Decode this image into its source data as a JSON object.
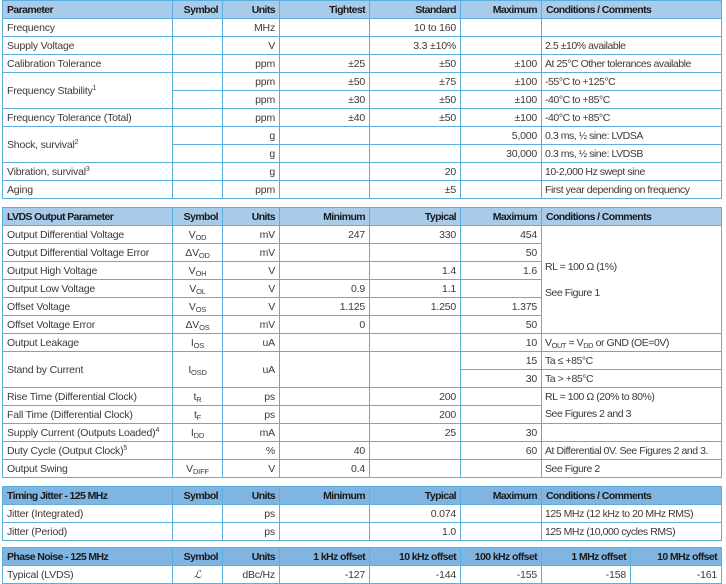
{
  "spec": {
    "headers": [
      "Parameter",
      "Symbol",
      "Units",
      "Tightest",
      "Standard",
      "Maximum",
      "Conditions / Comments"
    ],
    "rows": [
      {
        "parameter": "Frequency",
        "units": "MHz",
        "tightest": "",
        "standard": "10 to 160",
        "maximum": "",
        "conditions": ""
      },
      {
        "parameter": "Supply Voltage",
        "units": "V",
        "tightest": "",
        "standard": "3.3 ±10%",
        "maximum": "",
        "conditions": "2.5 ±10% available"
      },
      {
        "parameter": "Calibration Tolerance",
        "units": "ppm",
        "tightest": "±25",
        "standard": "±50",
        "maximum": "±100",
        "conditions": "At 25°C Other tolerances available"
      },
      {
        "parameter": "Frequency Stability",
        "sup": "1",
        "sub_rows": [
          {
            "units": "ppm",
            "tightest": "±50",
            "standard": "±75",
            "maximum": "±100",
            "conditions": "-55°C to +125°C"
          },
          {
            "units": "ppm",
            "tightest": "±30",
            "standard": "±50",
            "maximum": "±100",
            "conditions": "-40°C to +85°C"
          }
        ]
      },
      {
        "parameter": "Frequency Tolerance (Total)",
        "units": "ppm",
        "tightest": "±40",
        "standard": "±50",
        "maximum": "±100",
        "conditions": "-40°C to +85°C"
      },
      {
        "parameter": "Shock, survival",
        "sup": "2",
        "sub_rows": [
          {
            "units": "g",
            "maximum": "5,000",
            "conditions_pre": "0.3 ms, ",
            "frac": "½",
            "conditions": "sine: LVDSA"
          },
          {
            "units": "g",
            "maximum": "30,000",
            "conditions_pre": "0.3 ms, ",
            "frac": "½",
            "conditions": "sine: LVDSB"
          }
        ]
      },
      {
        "parameter": "Vibration, survival",
        "sup": "3",
        "units": "g",
        "standard": "20",
        "conditions": "10-2,000 Hz swept sine"
      },
      {
        "parameter": "Aging",
        "units": "ppm",
        "standard": "±5",
        "conditions": "First year depending on frequency"
      }
    ]
  },
  "lvds": {
    "headers": [
      "LVDS Output Parameter",
      "Symbol",
      "Units",
      "Minimum",
      "Typical",
      "Maximum",
      "Conditions / Comments"
    ],
    "rows": [
      {
        "parameter": "Output Differential Voltage",
        "symbol": "V",
        "symbol_sub": "OD",
        "units": "mV",
        "minimum": "247",
        "typical": "330",
        "maximum": "454"
      },
      {
        "parameter": "Output Differential Voltage Error",
        "symbol": "ΔV",
        "symbol_sub": "OD",
        "units": "mV",
        "maximum": "50"
      },
      {
        "parameter": "Output High Voltage",
        "symbol": "V",
        "symbol_sub": "OH",
        "units": "V",
        "typical": "1.4",
        "maximum": "1.6"
      },
      {
        "parameter": "Output Low Voltage",
        "symbol": "V",
        "symbol_sub": "OL",
        "units": "V",
        "minimum": "0.9",
        "typical": "1.1"
      },
      {
        "parameter": "Offset Voltage",
        "symbol": "V",
        "symbol_sub": "OS",
        "units": "V",
        "minimum": "1.125",
        "typical": "1.250",
        "maximum": "1.375"
      },
      {
        "parameter": "Offset Voltage Error",
        "symbol": "ΔV",
        "symbol_sub": "OS",
        "units": "mV",
        "minimum": "0",
        "maximum": "50"
      },
      {
        "parameter": "Output Leakage",
        "symbol": "I",
        "symbol_sub": "OS",
        "units": "uA",
        "maximum": "10",
        "cond_a": "V",
        "cond_a_sub": "OUT",
        "cond_b": " = V",
        "cond_b_sub": "DD",
        "cond_c": " or GND (OE=0V)"
      },
      {
        "parameter": "Stand by Current",
        "symbol": "I",
        "symbol_sub": "OSD",
        "units": "uA",
        "sub_rows": [
          {
            "maximum": "15",
            "conditions": "Ta ≤ +85°C"
          },
          {
            "maximum": "30",
            "conditions": "Ta > +85°C"
          }
        ]
      },
      {
        "parameter": "Rise Time (Differential Clock)",
        "symbol": "t",
        "symbol_sub": "R",
        "units": "ps",
        "typical": "200"
      },
      {
        "parameter": "Fall Time (Differential Clock)",
        "symbol": "t",
        "symbol_sub": "F",
        "units": "ps",
        "typical": "200"
      },
      {
        "parameter": "Supply Current (Outputs Loaded)",
        "sup": "4",
        "symbol": "I",
        "symbol_sub": "DD",
        "units": "mA",
        "typical": "25",
        "maximum": "30"
      },
      {
        "parameter": "Duty Cycle (Output Clock)",
        "sup": "5",
        "units": "%",
        "minimum": "40",
        "maximum": "60",
        "conditions": "At Differential 0V. See Figures 2 and 3."
      },
      {
        "parameter": "Output Swing",
        "symbol": "V",
        "symbol_sub": "DIFF",
        "units": "V",
        "minimum": "0.4",
        "conditions": "See Figure 2"
      }
    ],
    "group_conditions_1": [
      "RL = 100 Ω (1%)",
      "See Figure 1"
    ],
    "group_conditions_2": [
      "RL = 100 Ω (20% to 80%)",
      "See Figures 2 and 3"
    ]
  },
  "jitter": {
    "headers": [
      "Timing Jitter - 125 MHz",
      "Symbol",
      "Units",
      "Minimum",
      "Typical",
      "Maximum",
      "Conditions / Comments"
    ],
    "rows": [
      {
        "parameter": "Jitter (Integrated)",
        "units": "ps",
        "typical": "0.074",
        "conditions": "125 MHz (12 kHz to 20 MHz RMS)"
      },
      {
        "parameter": "Jitter (Period)",
        "units": "ps",
        "typical": "1.0",
        "conditions": "125 MHz (10,000 cycles RMS)"
      }
    ]
  },
  "phase_noise": {
    "headers": [
      "Phase Noise - 125 MHz",
      "Symbol",
      "Units",
      "1 kHz offset",
      "10 kHz offset",
      "100 kHz offset",
      "1 MHz offset",
      "10 MHz offset"
    ],
    "rows": [
      {
        "parameter": "Typical (LVDS)",
        "symbol": "ℒ",
        "units": "dBc/Hz",
        "values": [
          "-127",
          "-144",
          "-155",
          "-158",
          "-161"
        ]
      }
    ]
  },
  "colors": {
    "header_bg": "#a9cbea",
    "header_dark_bg": "#80b4e1",
    "border": "#5aaee0"
  }
}
